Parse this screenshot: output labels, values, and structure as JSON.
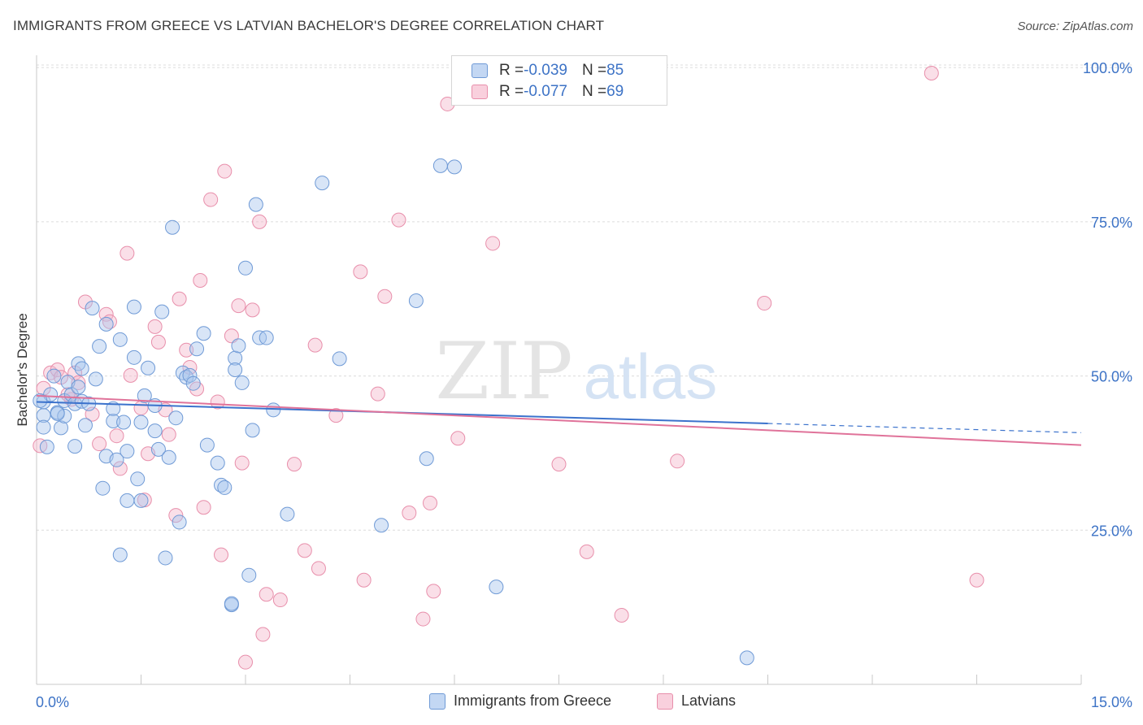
{
  "title": "IMMIGRANTS FROM GREECE VS LATVIAN BACHELOR'S DEGREE CORRELATION CHART",
  "source": "Source: ZipAtlas.com",
  "watermark": {
    "zip": "ZIP",
    "atlas": "atlas"
  },
  "legend": {
    "series1": {
      "r_label": "R = ",
      "r_value": "-0.039",
      "n_label": "N = ",
      "n_value": "85"
    },
    "series2": {
      "r_label": "R = ",
      "r_value": "-0.077",
      "n_label": "N = ",
      "n_value": "69"
    }
  },
  "colors": {
    "blue_fill": "#a9c6ee",
    "blue_stroke": "#6f9ad6",
    "blue_line": "#3b72cc",
    "pink_fill": "#f5b8cb",
    "pink_stroke": "#e88fab",
    "pink_line": "#e0739a",
    "axis_text": "#3d73c6",
    "grid": "#dcdcdc"
  },
  "chart_data": {
    "type": "scatter",
    "title": "IMMIGRANTS FROM GREECE VS LATVIAN BACHELOR'S DEGREE CORRELATION CHART",
    "xlabel": "",
    "ylabel": "Bachelor's Degree",
    "xlim": [
      0,
      15
    ],
    "ylim": [
      0,
      102
    ],
    "x_tick_labels": [
      "0.0%",
      "15.0%"
    ],
    "y_ticks": [
      25,
      50,
      75,
      100
    ],
    "y_tick_labels": [
      "25.0%",
      "50.0%",
      "75.0%",
      "100.0%"
    ],
    "series": [
      {
        "name": "Immigrants from Greece",
        "color": "#a9c6ee",
        "trend": {
          "x": [
            0,
            10.5
          ],
          "y": [
            45.8,
            42.3
          ],
          "dashed_to": [
            15,
            40.8
          ]
        },
        "points": [
          [
            0.1,
            43.6
          ],
          [
            0.1,
            45.8
          ],
          [
            0.1,
            41.7
          ],
          [
            0.2,
            47.0
          ],
          [
            0.25,
            50.0
          ],
          [
            0.3,
            44.1
          ],
          [
            0.35,
            41.6
          ],
          [
            0.4,
            46.0
          ],
          [
            0.4,
            43.5
          ],
          [
            0.45,
            49.0
          ],
          [
            0.5,
            47.0
          ],
          [
            0.55,
            45.5
          ],
          [
            0.55,
            38.6
          ],
          [
            0.6,
            52.0
          ],
          [
            0.65,
            51.2
          ],
          [
            0.65,
            45.9
          ],
          [
            0.7,
            42.0
          ],
          [
            0.75,
            45.5
          ],
          [
            0.8,
            61.0
          ],
          [
            0.85,
            49.5
          ],
          [
            0.9,
            54.8
          ],
          [
            0.95,
            31.8
          ],
          [
            1.0,
            58.4
          ],
          [
            1.0,
            37.0
          ],
          [
            1.1,
            42.7
          ],
          [
            1.1,
            44.7
          ],
          [
            1.15,
            36.4
          ],
          [
            1.2,
            55.9
          ],
          [
            1.2,
            21.0
          ],
          [
            1.3,
            29.8
          ],
          [
            1.3,
            37.8
          ],
          [
            1.4,
            61.2
          ],
          [
            1.4,
            53.0
          ],
          [
            1.45,
            33.3
          ],
          [
            1.5,
            42.5
          ],
          [
            1.55,
            46.8
          ],
          [
            1.6,
            51.3
          ],
          [
            1.7,
            41.1
          ],
          [
            1.7,
            45.2
          ],
          [
            1.75,
            38.1
          ],
          [
            1.8,
            60.4
          ],
          [
            1.85,
            20.5
          ],
          [
            1.9,
            36.8
          ],
          [
            1.95,
            74.1
          ],
          [
            2.0,
            43.2
          ],
          [
            2.05,
            26.3
          ],
          [
            2.1,
            50.5
          ],
          [
            2.15,
            49.8
          ],
          [
            2.2,
            50.1
          ],
          [
            2.3,
            54.4
          ],
          [
            2.4,
            56.9
          ],
          [
            2.45,
            38.8
          ],
          [
            2.6,
            35.9
          ],
          [
            2.65,
            32.3
          ],
          [
            2.7,
            31.9
          ],
          [
            2.8,
            12.9
          ],
          [
            2.8,
            13.1
          ],
          [
            2.85,
            52.9
          ],
          [
            2.85,
            51.0
          ],
          [
            2.9,
            54.9
          ],
          [
            2.95,
            48.9
          ],
          [
            3.0,
            67.5
          ],
          [
            3.05,
            17.7
          ],
          [
            3.1,
            41.2
          ],
          [
            3.15,
            77.8
          ],
          [
            3.2,
            56.2
          ],
          [
            3.3,
            56.2
          ],
          [
            3.4,
            44.5
          ],
          [
            3.6,
            27.6
          ],
          [
            4.1,
            81.3
          ],
          [
            4.35,
            52.8
          ],
          [
            4.95,
            25.8
          ],
          [
            5.45,
            62.2
          ],
          [
            5.6,
            36.6
          ],
          [
            5.8,
            84.1
          ],
          [
            6.0,
            83.9
          ],
          [
            6.6,
            15.8
          ],
          [
            1.5,
            29.8
          ],
          [
            0.3,
            43.9
          ],
          [
            10.2,
            4.3
          ],
          [
            0.05,
            46.0
          ],
          [
            0.15,
            38.5
          ],
          [
            0.6,
            48.2
          ],
          [
            1.25,
            42.5
          ],
          [
            2.25,
            48.8
          ]
        ]
      },
      {
        "name": "Latvians",
        "color": "#f5b8cb",
        "trend": {
          "x": [
            0,
            15
          ],
          "y": [
            46.8,
            38.8
          ]
        },
        "points": [
          [
            0.05,
            38.7
          ],
          [
            0.1,
            48.0
          ],
          [
            0.2,
            50.5
          ],
          [
            0.3,
            51.0
          ],
          [
            0.35,
            49.8
          ],
          [
            0.5,
            46.2
          ],
          [
            0.55,
            50.5
          ],
          [
            0.6,
            48.9
          ],
          [
            0.7,
            62.0
          ],
          [
            0.8,
            43.8
          ],
          [
            0.9,
            39.0
          ],
          [
            1.0,
            60.0
          ],
          [
            1.05,
            58.8
          ],
          [
            1.15,
            40.3
          ],
          [
            1.2,
            35.0
          ],
          [
            1.3,
            69.9
          ],
          [
            1.35,
            50.1
          ],
          [
            1.5,
            44.8
          ],
          [
            1.55,
            29.9
          ],
          [
            1.6,
            37.4
          ],
          [
            1.7,
            58.0
          ],
          [
            1.75,
            55.5
          ],
          [
            1.85,
            44.5
          ],
          [
            1.9,
            40.5
          ],
          [
            2.0,
            27.4
          ],
          [
            2.05,
            62.5
          ],
          [
            2.15,
            54.2
          ],
          [
            2.2,
            51.4
          ],
          [
            2.3,
            47.9
          ],
          [
            2.35,
            65.5
          ],
          [
            2.4,
            28.7
          ],
          [
            2.5,
            78.6
          ],
          [
            2.6,
            45.8
          ],
          [
            2.65,
            21.0
          ],
          [
            2.7,
            83.2
          ],
          [
            2.8,
            56.5
          ],
          [
            2.9,
            61.4
          ],
          [
            2.95,
            35.9
          ],
          [
            3.0,
            3.6
          ],
          [
            3.1,
            60.7
          ],
          [
            3.2,
            75.0
          ],
          [
            3.25,
            8.1
          ],
          [
            3.3,
            14.6
          ],
          [
            3.5,
            13.7
          ],
          [
            3.7,
            35.7
          ],
          [
            3.85,
            21.7
          ],
          [
            4.0,
            55.0
          ],
          [
            4.05,
            18.8
          ],
          [
            4.3,
            43.6
          ],
          [
            4.65,
            66.9
          ],
          [
            4.7,
            16.9
          ],
          [
            4.9,
            47.1
          ],
          [
            5.0,
            62.9
          ],
          [
            5.2,
            75.3
          ],
          [
            5.35,
            27.8
          ],
          [
            5.55,
            10.6
          ],
          [
            5.65,
            29.4
          ],
          [
            5.7,
            15.1
          ],
          [
            5.9,
            94.1
          ],
          [
            6.05,
            39.9
          ],
          [
            6.55,
            71.5
          ],
          [
            7.5,
            35.7
          ],
          [
            7.9,
            21.5
          ],
          [
            8.4,
            11.2
          ],
          [
            9.2,
            36.2
          ],
          [
            10.45,
            61.8
          ],
          [
            12.85,
            99.1
          ],
          [
            13.5,
            16.9
          ],
          [
            0.45,
            47.0
          ]
        ]
      }
    ],
    "legend": [
      "Immigrants from Greece",
      "Latvians"
    ]
  }
}
